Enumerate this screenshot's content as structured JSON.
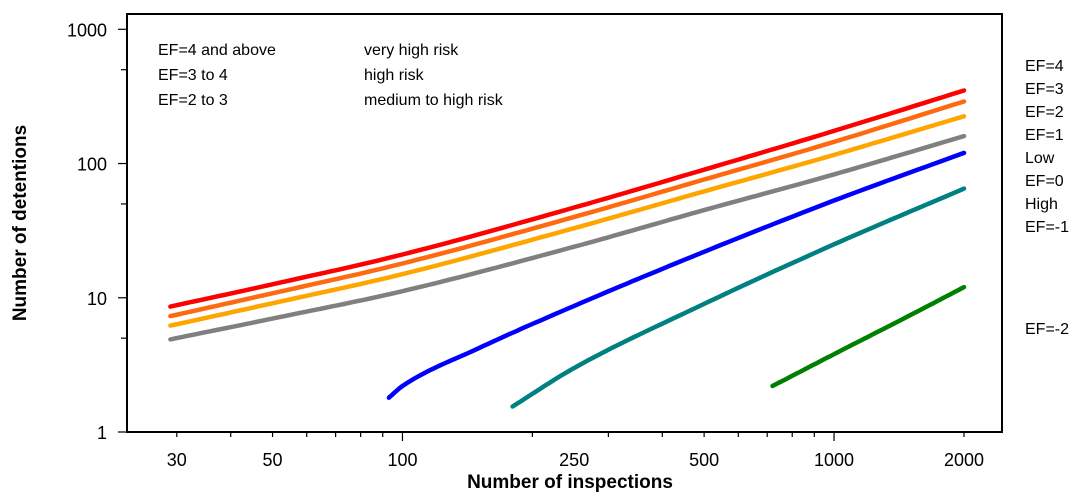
{
  "chart_data": {
    "type": "line",
    "title": "",
    "xlabel": "Number of inspections",
    "ylabel": "Number of detentions",
    "x_scale": "log",
    "y_scale": "log",
    "xlim": [
      23,
      2450
    ],
    "ylim": [
      1,
      1300
    ],
    "x_ticks": [
      30,
      50,
      100,
      250,
      500,
      1000,
      2000
    ],
    "y_ticks": [
      1,
      10,
      100,
      1000
    ],
    "grid": false,
    "legend_table": [
      {
        "range": "EF=4 and above",
        "risk": "very high risk"
      },
      {
        "range": "EF=3 to 4",
        "risk": "high risk"
      },
      {
        "range": "EF=2 to 3",
        "risk": "medium to high risk"
      }
    ],
    "right_labels": [
      "EF=4",
      "EF=3",
      "EF=2",
      "EF=1",
      "Low",
      "EF=0",
      "High",
      "EF=-1",
      "EF=-2"
    ],
    "series": [
      {
        "color": "#ff0000",
        "x": [
          29,
          50,
          100,
          250,
          500,
          1000,
          2000
        ],
        "y": [
          8.6,
          12.6,
          21,
          47,
          90,
          175,
          350
        ]
      },
      {
        "color": "#ff6a10",
        "x": [
          29,
          50,
          100,
          250,
          500,
          1000,
          2000
        ],
        "y": [
          7.3,
          10.8,
          18,
          40,
          76,
          145,
          290
        ]
      },
      {
        "color": "#ffa500",
        "x": [
          29,
          50,
          100,
          250,
          500,
          1000,
          2000
        ],
        "y": [
          6.2,
          9.1,
          15,
          33,
          62,
          116,
          225
        ]
      },
      {
        "color": "#808080",
        "x": [
          29,
          50,
          100,
          250,
          500,
          1000,
          2000
        ],
        "y": [
          4.9,
          7,
          11.2,
          24,
          45,
          83,
          160
        ]
      },
      {
        "color": "#0000ff",
        "x": [
          93,
          100,
          150,
          250,
          500,
          1000,
          2000
        ],
        "y": [
          1.8,
          2.2,
          4.2,
          8.7,
          22,
          53,
          120
        ]
      },
      {
        "color": "#008080",
        "x": [
          180,
          250,
          500,
          1000,
          2000
        ],
        "y": [
          1.55,
          3,
          9,
          25,
          65
        ]
      },
      {
        "color": "#008000",
        "x": [
          720,
          1000,
          1500,
          2000
        ],
        "y": [
          2.2,
          3.8,
          7.4,
          12
        ]
      }
    ]
  }
}
